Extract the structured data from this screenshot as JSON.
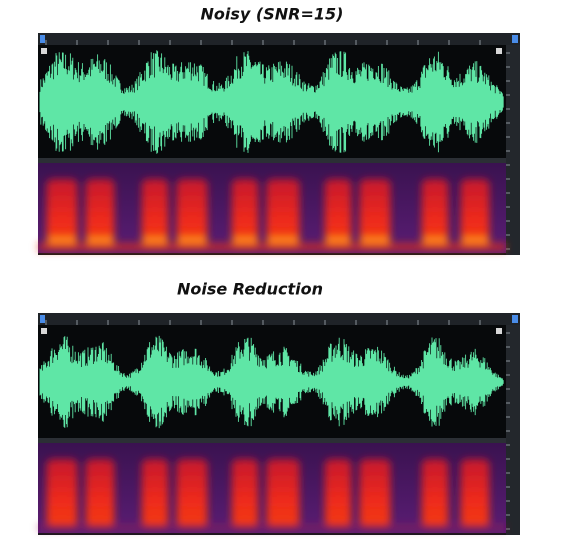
{
  "panels": [
    {
      "title": "Noisy (SNR=15)"
    },
    {
      "title": "Noise Reduction"
    }
  ]
}
